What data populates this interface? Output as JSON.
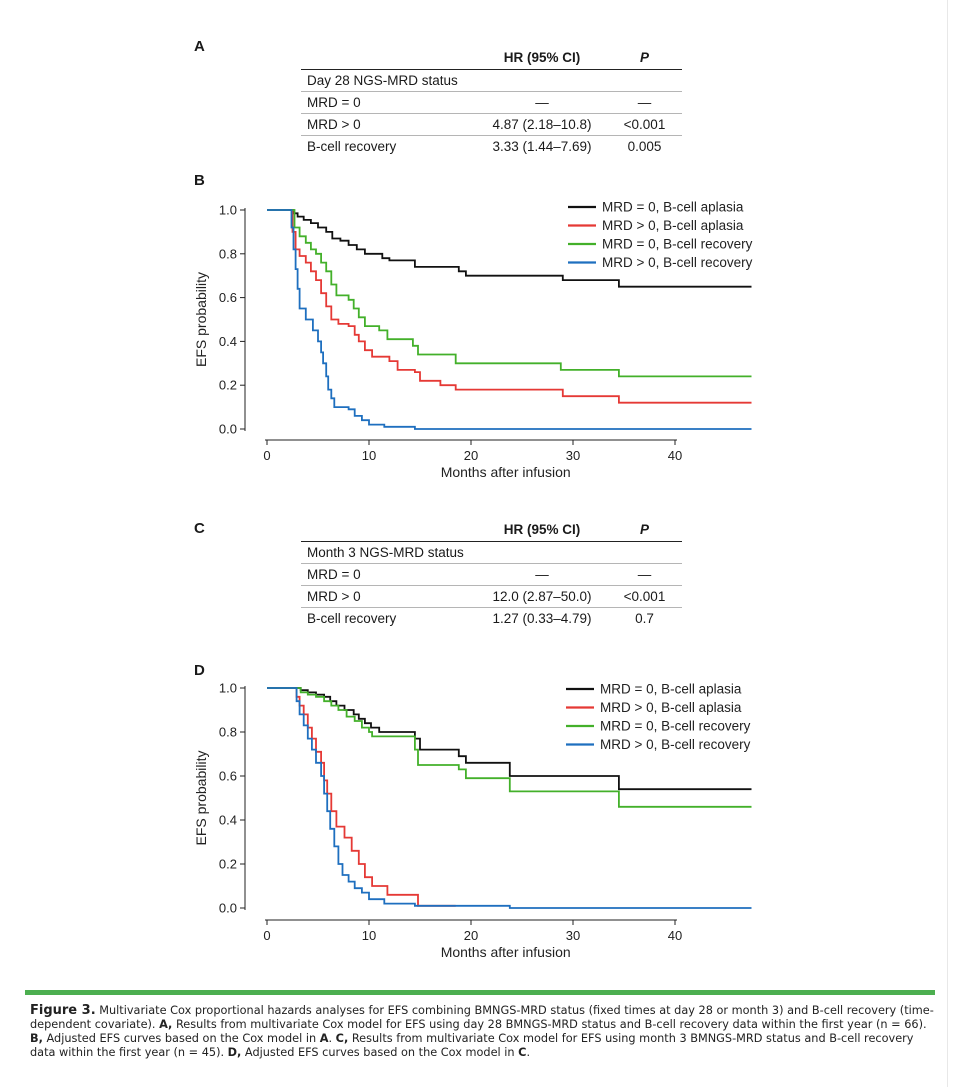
{
  "panelA": {
    "label": "A",
    "header": {
      "hr": "HR (95% CI)",
      "p": "P"
    },
    "section": "Day 28 NGS-MRD status",
    "rows": [
      {
        "name": "MRD = 0",
        "hr": "—",
        "p": "—"
      },
      {
        "name": "MRD > 0",
        "hr": "4.87 (2.18–10.8)",
        "p": "<0.001"
      },
      {
        "name": "B-cell recovery",
        "hr": "3.33 (1.44–7.69)",
        "p": "0.005"
      }
    ]
  },
  "panelC": {
    "label": "C",
    "header": {
      "hr": "HR (95% CI)",
      "p": "P"
    },
    "section": "Month 3 NGS-MRD status",
    "rows": [
      {
        "name": "MRD = 0",
        "hr": "—",
        "p": "—"
      },
      {
        "name": "MRD > 0",
        "hr": "12.0 (2.87–50.0)",
        "p": "<0.001"
      },
      {
        "name": "B-cell recovery",
        "hr": "1.27 (0.33–4.79)",
        "p": "0.7"
      }
    ]
  },
  "chart_data": [
    {
      "panel": "B",
      "type": "line",
      "xlabel": "Months after infusion",
      "ylabel": "EFS probability",
      "xlim": [
        0,
        47
      ],
      "ylim": [
        0,
        1
      ],
      "xticks": [
        0,
        10,
        20,
        30,
        40
      ],
      "yticks": [
        "0.0",
        "0.2",
        "0.4",
        "0.6",
        "0.8",
        "1.0"
      ],
      "legend_position": "top-right",
      "series": [
        {
          "name": "MRD = 0, B-cell aplasia",
          "color": "#111111",
          "points": [
            [
              0,
              1
            ],
            [
              2.3,
              1
            ],
            [
              2.6,
              0.985
            ],
            [
              3.0,
              0.97
            ],
            [
              3.6,
              0.955
            ],
            [
              4.3,
              0.94
            ],
            [
              5.0,
              0.92
            ],
            [
              5.8,
              0.9
            ],
            [
              6.4,
              0.87
            ],
            [
              7.2,
              0.86
            ],
            [
              8.0,
              0.84
            ],
            [
              8.8,
              0.82
            ],
            [
              9.6,
              0.8
            ],
            [
              11.3,
              0.78
            ],
            [
              12.0,
              0.77
            ],
            [
              14.5,
              0.74
            ],
            [
              18.8,
              0.72
            ],
            [
              19.5,
              0.7
            ],
            [
              29.0,
              0.68
            ],
            [
              34.5,
              0.65
            ],
            [
              47.5,
              0.65
            ]
          ]
        },
        {
          "name": "MRD > 0, B-cell aplasia",
          "color": "#e53935",
          "points": [
            [
              0,
              1
            ],
            [
              2.2,
              1
            ],
            [
              2.5,
              0.9
            ],
            [
              2.8,
              0.82
            ],
            [
              3.2,
              0.79
            ],
            [
              3.8,
              0.76
            ],
            [
              4.3,
              0.72
            ],
            [
              4.8,
              0.68
            ],
            [
              5.3,
              0.62
            ],
            [
              5.8,
              0.56
            ],
            [
              6.3,
              0.5
            ],
            [
              7.0,
              0.48
            ],
            [
              8.0,
              0.47
            ],
            [
              8.6,
              0.43
            ],
            [
              9.0,
              0.4
            ],
            [
              9.6,
              0.36
            ],
            [
              10.3,
              0.33
            ],
            [
              12.0,
              0.31
            ],
            [
              12.8,
              0.27
            ],
            [
              14.5,
              0.26
            ],
            [
              15.0,
              0.22
            ],
            [
              17.0,
              0.2
            ],
            [
              18.5,
              0.18
            ],
            [
              29.0,
              0.15
            ],
            [
              34.5,
              0.12
            ],
            [
              47.5,
              0.12
            ]
          ]
        },
        {
          "name": "MRD = 0, B-cell recovery",
          "color": "#43b02a",
          "points": [
            [
              0,
              1
            ],
            [
              2.3,
              1
            ],
            [
              2.7,
              0.92
            ],
            [
              3.2,
              0.88
            ],
            [
              3.8,
              0.85
            ],
            [
              4.3,
              0.82
            ],
            [
              4.8,
              0.8
            ],
            [
              5.3,
              0.76
            ],
            [
              5.8,
              0.72
            ],
            [
              6.3,
              0.66
            ],
            [
              6.8,
              0.61
            ],
            [
              8.0,
              0.59
            ],
            [
              8.5,
              0.55
            ],
            [
              9.0,
              0.51
            ],
            [
              9.6,
              0.47
            ],
            [
              11.0,
              0.45
            ],
            [
              11.8,
              0.41
            ],
            [
              14.3,
              0.38
            ],
            [
              14.8,
              0.34
            ],
            [
              18.5,
              0.3
            ],
            [
              28.8,
              0.27
            ],
            [
              34.5,
              0.24
            ],
            [
              47.5,
              0.24
            ]
          ]
        },
        {
          "name": "MRD > 0, B-cell recovery",
          "color": "#1e6fbf",
          "points": [
            [
              0,
              1
            ],
            [
              2.2,
              1
            ],
            [
              2.4,
              0.92
            ],
            [
              2.6,
              0.82
            ],
            [
              2.8,
              0.73
            ],
            [
              3.0,
              0.64
            ],
            [
              3.2,
              0.55
            ],
            [
              3.8,
              0.5
            ],
            [
              4.5,
              0.45
            ],
            [
              5.0,
              0.4
            ],
            [
              5.3,
              0.35
            ],
            [
              5.5,
              0.3
            ],
            [
              5.8,
              0.24
            ],
            [
              6.0,
              0.18
            ],
            [
              6.3,
              0.14
            ],
            [
              6.6,
              0.1
            ],
            [
              8.0,
              0.09
            ],
            [
              8.6,
              0.06
            ],
            [
              9.3,
              0.04
            ],
            [
              10.0,
              0.02
            ],
            [
              11.5,
              0.01
            ],
            [
              14.5,
              0.0
            ],
            [
              47.5,
              0.0
            ]
          ]
        }
      ]
    },
    {
      "panel": "D",
      "type": "line",
      "xlabel": "Months after infusion",
      "ylabel": "EFS probability",
      "xlim": [
        0,
        47
      ],
      "ylim": [
        0,
        1
      ],
      "xticks": [
        0,
        10,
        20,
        30,
        40
      ],
      "yticks": [
        "0.0",
        "0.2",
        "0.4",
        "0.6",
        "0.8",
        "1.0"
      ],
      "legend_position": "top-right",
      "series": [
        {
          "name": "MRD = 0, B-cell aplasia",
          "color": "#111111",
          "points": [
            [
              0,
              1
            ],
            [
              3.0,
              1
            ],
            [
              3.3,
              0.99
            ],
            [
              4.0,
              0.98
            ],
            [
              4.8,
              0.97
            ],
            [
              5.6,
              0.96
            ],
            [
              6.2,
              0.94
            ],
            [
              6.8,
              0.92
            ],
            [
              7.6,
              0.9
            ],
            [
              8.5,
              0.88
            ],
            [
              9.0,
              0.86
            ],
            [
              9.6,
              0.84
            ],
            [
              10.2,
              0.82
            ],
            [
              11.0,
              0.8
            ],
            [
              14.5,
              0.77
            ],
            [
              15.0,
              0.72
            ],
            [
              18.8,
              0.69
            ],
            [
              19.5,
              0.66
            ],
            [
              23.8,
              0.6
            ],
            [
              34.5,
              0.54
            ],
            [
              47.5,
              0.54
            ]
          ]
        },
        {
          "name": "MRD > 0, B-cell aplasia",
          "color": "#e53935",
          "points": [
            [
              0,
              1
            ],
            [
              2.6,
              1
            ],
            [
              2.9,
              0.96
            ],
            [
              3.2,
              0.92
            ],
            [
              3.6,
              0.88
            ],
            [
              4.0,
              0.82
            ],
            [
              4.4,
              0.77
            ],
            [
              4.8,
              0.71
            ],
            [
              5.3,
              0.66
            ],
            [
              5.6,
              0.58
            ],
            [
              5.9,
              0.52
            ],
            [
              6.3,
              0.44
            ],
            [
              6.8,
              0.37
            ],
            [
              7.6,
              0.32
            ],
            [
              8.3,
              0.26
            ],
            [
              9.0,
              0.2
            ],
            [
              9.6,
              0.14
            ],
            [
              10.3,
              0.1
            ],
            [
              11.8,
              0.06
            ],
            [
              14.8,
              0.01
            ],
            [
              18.5,
              0.01
            ]
          ]
        },
        {
          "name": "MRD = 0, B-cell recovery",
          "color": "#43b02a",
          "points": [
            [
              0,
              1
            ],
            [
              3.0,
              1
            ],
            [
              3.3,
              0.98
            ],
            [
              4.0,
              0.97
            ],
            [
              4.8,
              0.96
            ],
            [
              5.6,
              0.94
            ],
            [
              6.3,
              0.92
            ],
            [
              7.0,
              0.9
            ],
            [
              7.8,
              0.87
            ],
            [
              8.6,
              0.85
            ],
            [
              9.3,
              0.82
            ],
            [
              10.0,
              0.8
            ],
            [
              10.3,
              0.78
            ],
            [
              14.5,
              0.72
            ],
            [
              14.8,
              0.65
            ],
            [
              18.8,
              0.63
            ],
            [
              19.5,
              0.59
            ],
            [
              23.8,
              0.53
            ],
            [
              34.5,
              0.46
            ],
            [
              47.5,
              0.46
            ]
          ]
        },
        {
          "name": "MRD > 0, B-cell recovery",
          "color": "#1e6fbf",
          "points": [
            [
              0,
              1
            ],
            [
              2.6,
              1
            ],
            [
              2.9,
              0.94
            ],
            [
              3.2,
              0.88
            ],
            [
              3.6,
              0.83
            ],
            [
              4.0,
              0.77
            ],
            [
              4.4,
              0.72
            ],
            [
              4.8,
              0.66
            ],
            [
              5.3,
              0.6
            ],
            [
              5.6,
              0.52
            ],
            [
              5.9,
              0.44
            ],
            [
              6.2,
              0.36
            ],
            [
              6.6,
              0.28
            ],
            [
              7.0,
              0.2
            ],
            [
              7.4,
              0.15
            ],
            [
              8.0,
              0.12
            ],
            [
              8.6,
              0.09
            ],
            [
              9.3,
              0.07
            ],
            [
              10.0,
              0.04
            ],
            [
              11.5,
              0.02
            ],
            [
              14.5,
              0.01
            ],
            [
              23.8,
              0.0
            ],
            [
              47.5,
              0.0
            ]
          ]
        }
      ]
    }
  ],
  "caption": {
    "figure": "Figure 3.",
    "segments": [
      {
        "t": " Multivariate Cox proportional hazards analyses for EFS combining BMNGS-MRD status (fixed times at day 28 or month 3) and B-cell recovery (time-dependent covariate). ",
        "b": false
      },
      {
        "t": "A,",
        "b": true
      },
      {
        "t": " Results from multivariate Cox model for EFS using day 28 BMNGS-MRD status and B-cell recovery data within the first year (n = 66). ",
        "b": false
      },
      {
        "t": "B,",
        "b": true
      },
      {
        "t": " Adjusted EFS curves based on the Cox model in ",
        "b": false
      },
      {
        "t": "A",
        "b": true
      },
      {
        "t": ". ",
        "b": false
      },
      {
        "t": "C,",
        "b": true
      },
      {
        "t": " Results from multivariate Cox model for EFS using month 3 BMNGS-MRD status and B-cell recovery data within the first year (n = 45). ",
        "b": false
      },
      {
        "t": "D,",
        "b": true
      },
      {
        "t": " Adjusted EFS curves based on the Cox model in ",
        "b": false
      },
      {
        "t": "C",
        "b": true
      },
      {
        "t": ".",
        "b": false
      }
    ]
  }
}
